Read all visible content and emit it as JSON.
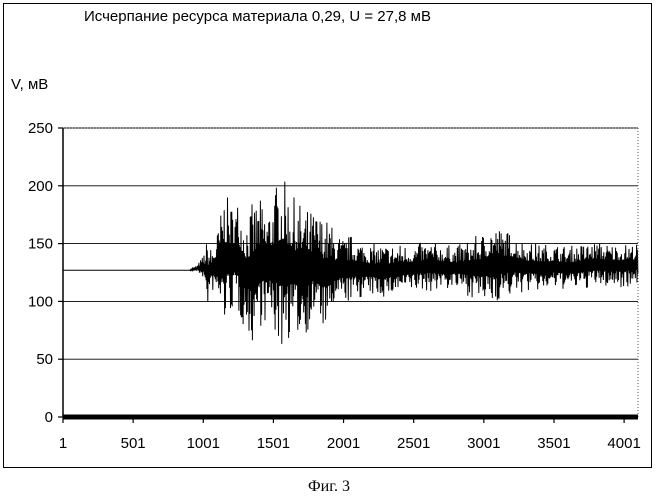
{
  "chart_data": {
    "type": "line",
    "title": "Исчерпание ресурса материала 0,29, U = 27,8 мВ",
    "ylabel": "V, мВ",
    "caption": "Фиг. 3",
    "xlim": [
      1,
      4100
    ],
    "ylim": [
      0,
      250
    ],
    "y_ticks": [
      "0",
      "50",
      "100",
      "150",
      "200",
      "250"
    ],
    "x_ticks": [
      "1",
      "501",
      "1001",
      "1501",
      "2001",
      "2501",
      "3001",
      "3501",
      "4001"
    ],
    "grid": "horizontal",
    "series": [
      {
        "x": [
          1,
          900,
          960,
          1001,
          1030,
          1060,
          1100,
          1150,
          1200,
          1250,
          1300,
          1350,
          1400,
          1450,
          1500,
          1550,
          1600,
          1650,
          1700,
          1750,
          1800,
          1850,
          1900,
          1950,
          2000,
          2050,
          2100,
          2200,
          2300,
          2400,
          2500,
          2600,
          2700,
          2800,
          2900,
          3000,
          3050,
          3100,
          3150,
          3200,
          3300,
          3400,
          3500,
          3600,
          3700,
          3800,
          3900,
          4000,
          4100
        ],
        "y_min": [
          127,
          127,
          125,
          120,
          93,
          110,
          100,
          78,
          90,
          85,
          75,
          62,
          78,
          80,
          72,
          55,
          65,
          70,
          68,
          74,
          85,
          75,
          80,
          95,
          100,
          98,
          102,
          104,
          103,
          106,
          108,
          108,
          110,
          110,
          104,
          98,
          95,
          100,
          102,
          104,
          108,
          108,
          110,
          110,
          110,
          112,
          112,
          112,
          114
        ],
        "y_max": [
          127,
          127,
          132,
          140,
          155,
          145,
          160,
          195,
          185,
          190,
          175,
          185,
          190,
          180,
          195,
          212,
          200,
          190,
          185,
          180,
          178,
          175,
          170,
          160,
          155,
          158,
          155,
          150,
          150,
          150,
          150,
          152,
          150,
          148,
          154,
          160,
          168,
          165,
          162,
          160,
          152,
          150,
          150,
          148,
          150,
          152,
          150,
          150,
          150
        ]
      }
    ]
  }
}
